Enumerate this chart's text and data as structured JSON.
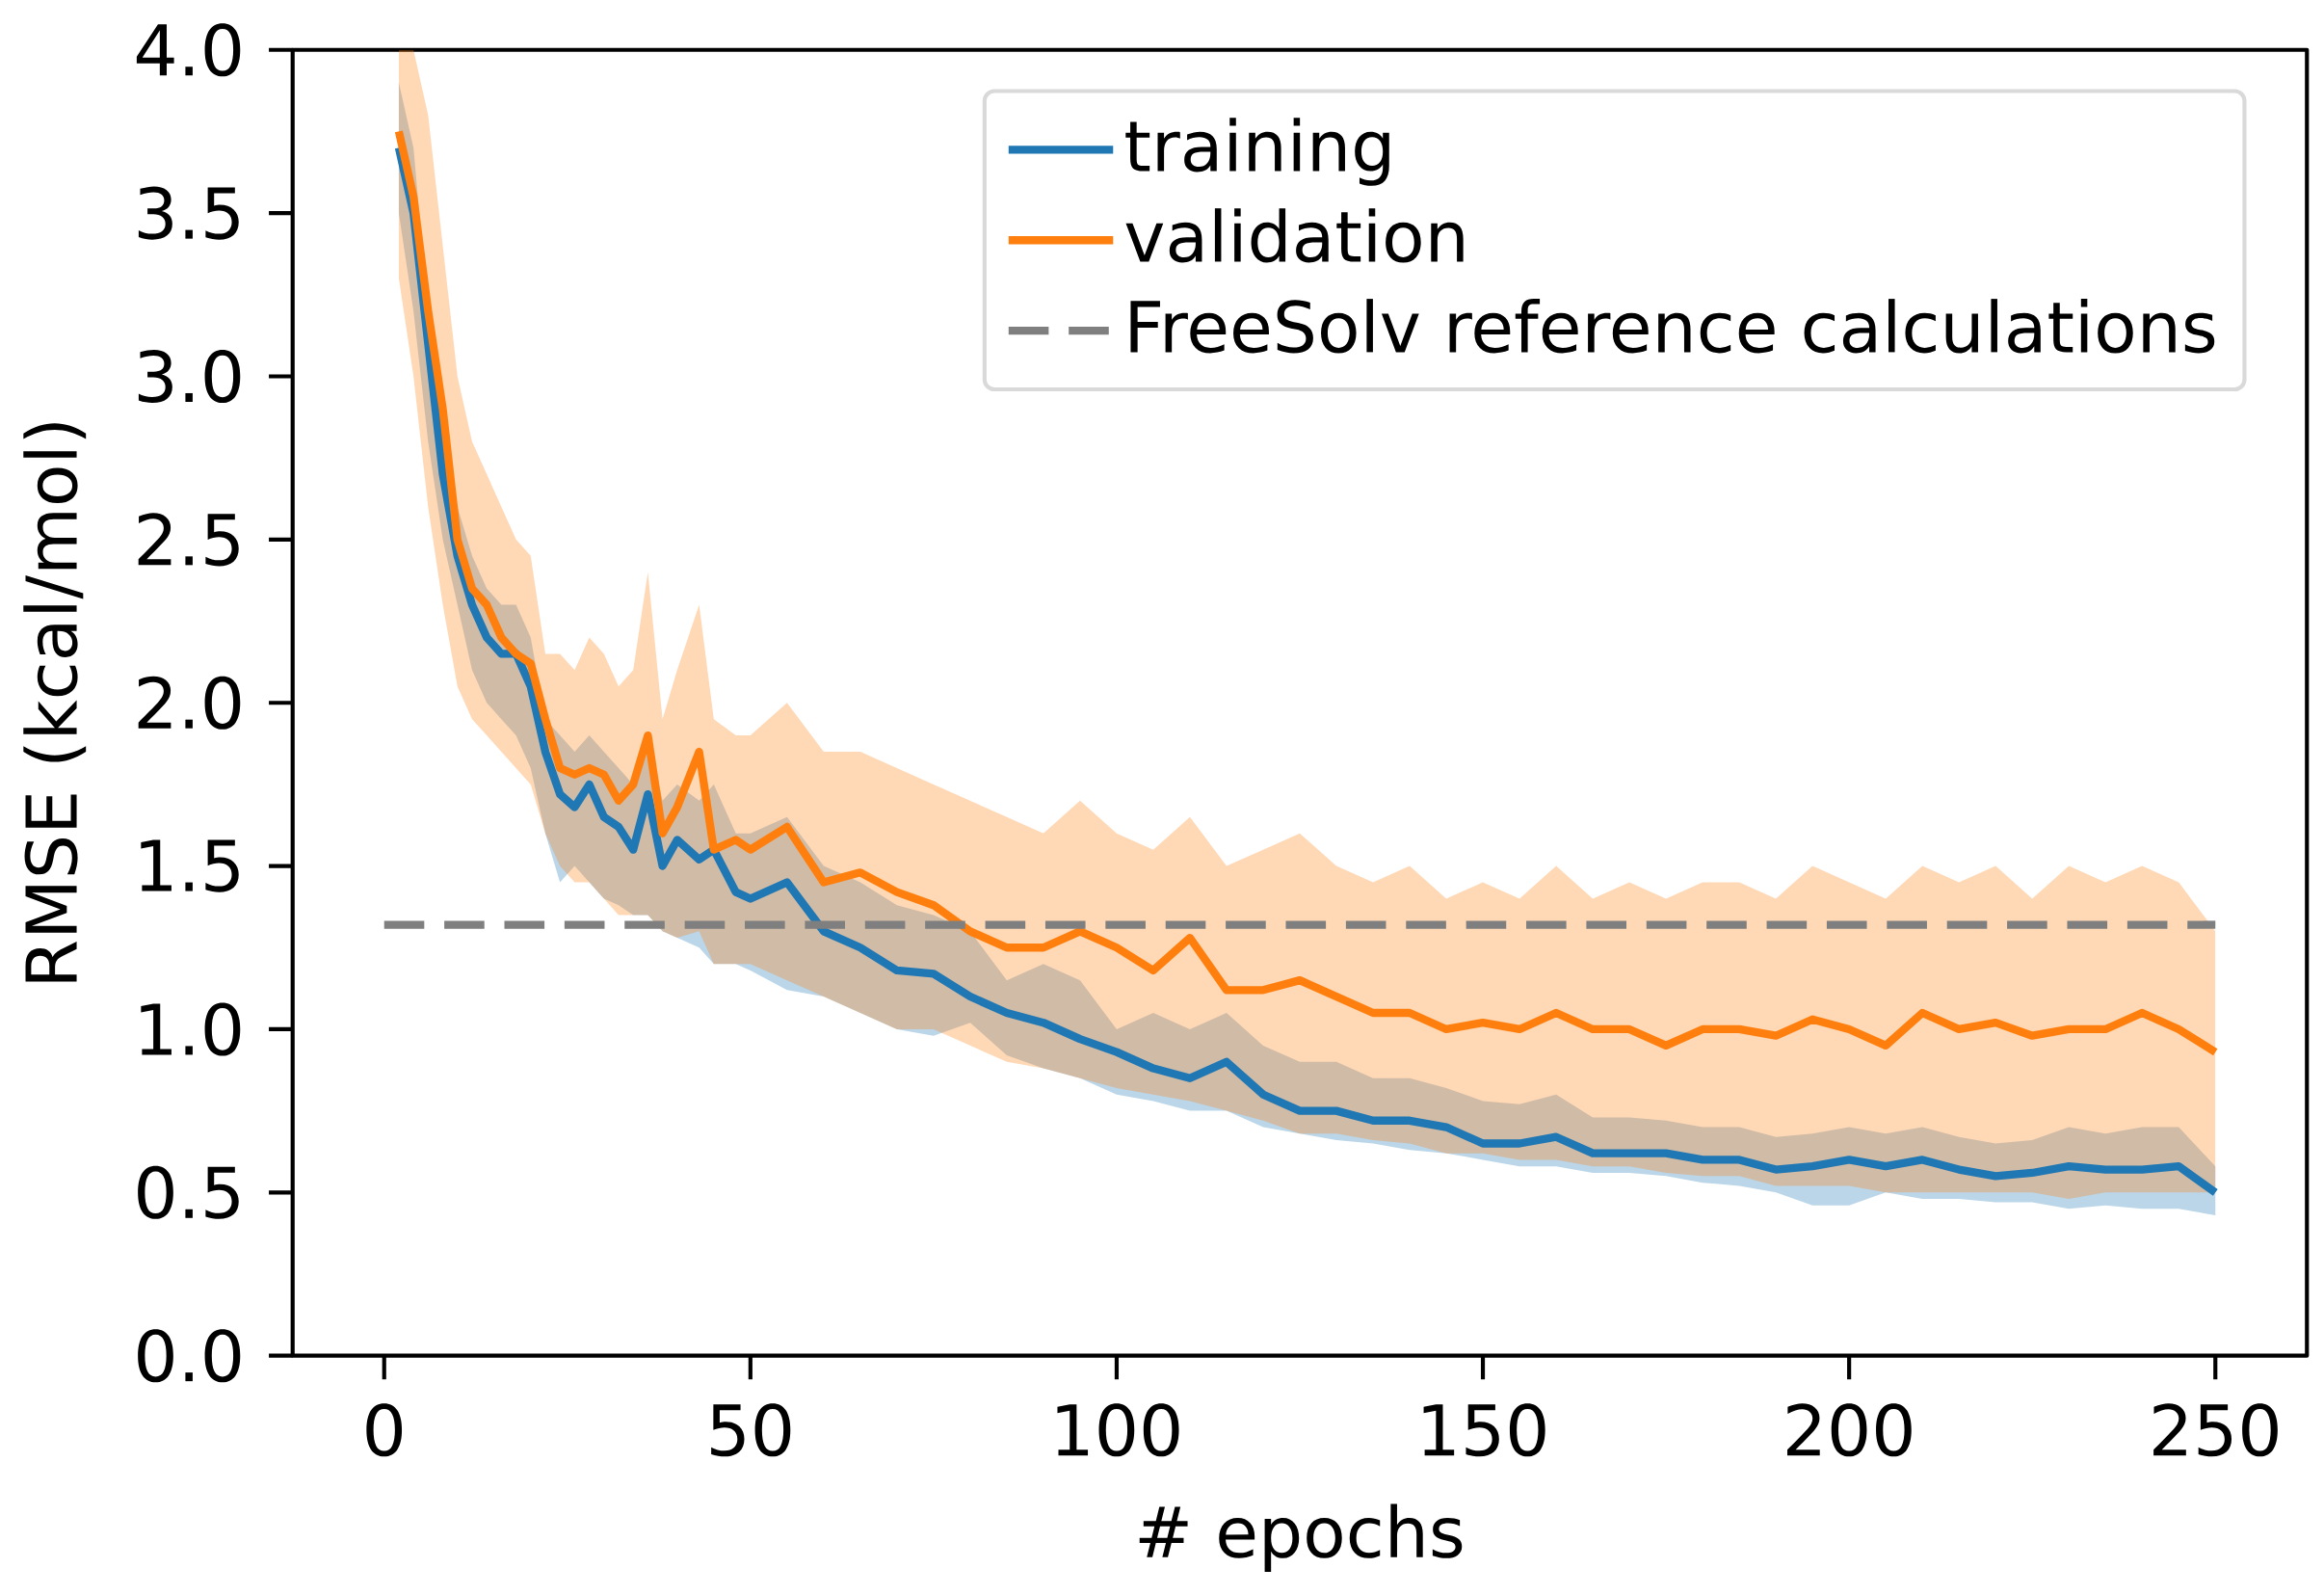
{
  "chart_data": {
    "type": "line",
    "xlabel": "# epochs",
    "ylabel": "RMSE (kcal/mol)",
    "xlim": [
      -12.5,
      262.5
    ],
    "ylim": [
      0,
      4
    ],
    "xticks": [
      0,
      50,
      100,
      150,
      200,
      250
    ],
    "yticks": [
      {
        "value": 0,
        "label": "0.0"
      },
      {
        "value": 0.5,
        "label": "0.5"
      },
      {
        "value": 1,
        "label": "1.0"
      },
      {
        "value": 1.5,
        "label": "1.5"
      },
      {
        "value": 2,
        "label": "2.0"
      },
      {
        "value": 2.5,
        "label": "2.5"
      },
      {
        "value": 3,
        "label": "3.0"
      },
      {
        "value": 3.5,
        "label": "3.5"
      },
      {
        "value": 4,
        "label": "4.0"
      }
    ],
    "grid": false,
    "legend": "top right",
    "marker": "none",
    "x": [
      2,
      4,
      6,
      8,
      10,
      12,
      14,
      16,
      18,
      20,
      22,
      24,
      26,
      28,
      30,
      32,
      34,
      36,
      38,
      40,
      43,
      45,
      48,
      50,
      55,
      60,
      65,
      70,
      75,
      80,
      85,
      90,
      95,
      100,
      105,
      110,
      115,
      120,
      125,
      130,
      135,
      140,
      145,
      150,
      155,
      160,
      165,
      170,
      175,
      180,
      185,
      190,
      195,
      200,
      205,
      210,
      215,
      220,
      225,
      230,
      235,
      240,
      245,
      250
    ],
    "series": [
      {
        "name": "training",
        "color": "#1f77b4",
        "line_style": "solid",
        "values": [
          3.7,
          3.5,
          3.1,
          2.7,
          2.45,
          2.3,
          2.2,
          2.15,
          2.15,
          2.05,
          1.85,
          1.72,
          1.68,
          1.75,
          1.65,
          1.62,
          1.55,
          1.72,
          1.5,
          1.58,
          1.52,
          1.55,
          1.42,
          1.4,
          1.45,
          1.3,
          1.25,
          1.18,
          1.17,
          1.1,
          1.05,
          1.02,
          0.97,
          0.93,
          0.88,
          0.85,
          0.9,
          0.8,
          0.75,
          0.75,
          0.72,
          0.72,
          0.7,
          0.65,
          0.65,
          0.67,
          0.62,
          0.62,
          0.62,
          0.6,
          0.6,
          0.57,
          0.58,
          0.6,
          0.58,
          0.6,
          0.57,
          0.55,
          0.56,
          0.58,
          0.57,
          0.57,
          0.58,
          0.5
        ],
        "lower": [
          3.5,
          3.2,
          2.8,
          2.5,
          2.3,
          2.1,
          2.0,
          1.95,
          1.9,
          1.8,
          1.6,
          1.45,
          1.5,
          1.45,
          1.4,
          1.38,
          1.35,
          1.35,
          1.3,
          1.28,
          1.25,
          1.2,
          1.2,
          1.18,
          1.12,
          1.1,
          1.05,
          1.0,
          0.98,
          1.02,
          0.92,
          0.88,
          0.85,
          0.8,
          0.78,
          0.75,
          0.75,
          0.7,
          0.68,
          0.66,
          0.65,
          0.63,
          0.62,
          0.6,
          0.58,
          0.58,
          0.56,
          0.56,
          0.55,
          0.53,
          0.52,
          0.5,
          0.46,
          0.46,
          0.5,
          0.48,
          0.48,
          0.47,
          0.47,
          0.45,
          0.46,
          0.45,
          0.45,
          0.43
        ],
        "upper": [
          3.9,
          3.7,
          3.2,
          2.8,
          2.6,
          2.45,
          2.35,
          2.3,
          2.3,
          2.2,
          1.95,
          1.9,
          1.85,
          1.9,
          1.85,
          1.8,
          1.75,
          1.9,
          1.7,
          1.75,
          1.7,
          1.75,
          1.6,
          1.6,
          1.65,
          1.5,
          1.45,
          1.38,
          1.35,
          1.3,
          1.15,
          1.2,
          1.15,
          1.0,
          1.05,
          1.0,
          1.05,
          0.95,
          0.9,
          0.9,
          0.85,
          0.85,
          0.82,
          0.78,
          0.77,
          0.8,
          0.73,
          0.73,
          0.72,
          0.7,
          0.7,
          0.67,
          0.68,
          0.7,
          0.68,
          0.7,
          0.67,
          0.65,
          0.66,
          0.7,
          0.68,
          0.7,
          0.7,
          0.58
        ]
      },
      {
        "name": "validation",
        "color": "#ff7f0e",
        "line_style": "solid",
        "values": [
          3.75,
          3.55,
          3.2,
          2.9,
          2.5,
          2.35,
          2.3,
          2.2,
          2.15,
          2.12,
          1.95,
          1.8,
          1.78,
          1.8,
          1.78,
          1.7,
          1.75,
          1.9,
          1.6,
          1.68,
          1.85,
          1.55,
          1.58,
          1.55,
          1.62,
          1.45,
          1.48,
          1.42,
          1.38,
          1.3,
          1.25,
          1.25,
          1.3,
          1.25,
          1.18,
          1.28,
          1.12,
          1.12,
          1.15,
          1.1,
          1.05,
          1.05,
          1.0,
          1.02,
          1.0,
          1.05,
          1.0,
          1.0,
          0.95,
          1.0,
          1.0,
          0.98,
          1.03,
          1.0,
          0.95,
          1.05,
          1.0,
          1.02,
          0.98,
          1.0,
          1.0,
          1.05,
          1.0,
          0.93
        ],
        "lower": [
          3.3,
          3.0,
          2.6,
          2.3,
          2.05,
          1.95,
          1.9,
          1.85,
          1.8,
          1.75,
          1.6,
          1.5,
          1.45,
          1.45,
          1.4,
          1.35,
          1.35,
          1.35,
          1.3,
          1.28,
          1.3,
          1.2,
          1.2,
          1.2,
          1.15,
          1.1,
          1.05,
          1.0,
          1.0,
          0.95,
          0.9,
          0.88,
          0.85,
          0.82,
          0.8,
          0.78,
          0.75,
          0.72,
          0.68,
          0.68,
          0.66,
          0.65,
          0.62,
          0.62,
          0.6,
          0.6,
          0.58,
          0.58,
          0.56,
          0.55,
          0.55,
          0.52,
          0.52,
          0.52,
          0.5,
          0.5,
          0.5,
          0.5,
          0.5,
          0.48,
          0.5,
          0.5,
          0.5,
          0.5
        ],
        "upper": [
          4.0,
          4.0,
          3.8,
          3.4,
          3.0,
          2.8,
          2.7,
          2.6,
          2.5,
          2.45,
          2.15,
          2.15,
          2.1,
          2.2,
          2.15,
          2.05,
          2.1,
          2.4,
          1.95,
          2.1,
          2.3,
          1.95,
          1.9,
          1.9,
          2.0,
          1.85,
          1.85,
          1.8,
          1.75,
          1.7,
          1.65,
          1.6,
          1.7,
          1.6,
          1.55,
          1.65,
          1.5,
          1.55,
          1.6,
          1.5,
          1.45,
          1.5,
          1.4,
          1.45,
          1.4,
          1.5,
          1.4,
          1.45,
          1.4,
          1.45,
          1.45,
          1.4,
          1.5,
          1.45,
          1.4,
          1.5,
          1.45,
          1.5,
          1.4,
          1.5,
          1.45,
          1.5,
          1.45,
          1.3
        ]
      },
      {
        "name": "FreeSolv reference calculations",
        "color": "#7f7f7f",
        "line_style": "dashed",
        "x": [
          0,
          250
        ],
        "values": [
          1.32,
          1.32
        ]
      }
    ]
  }
}
